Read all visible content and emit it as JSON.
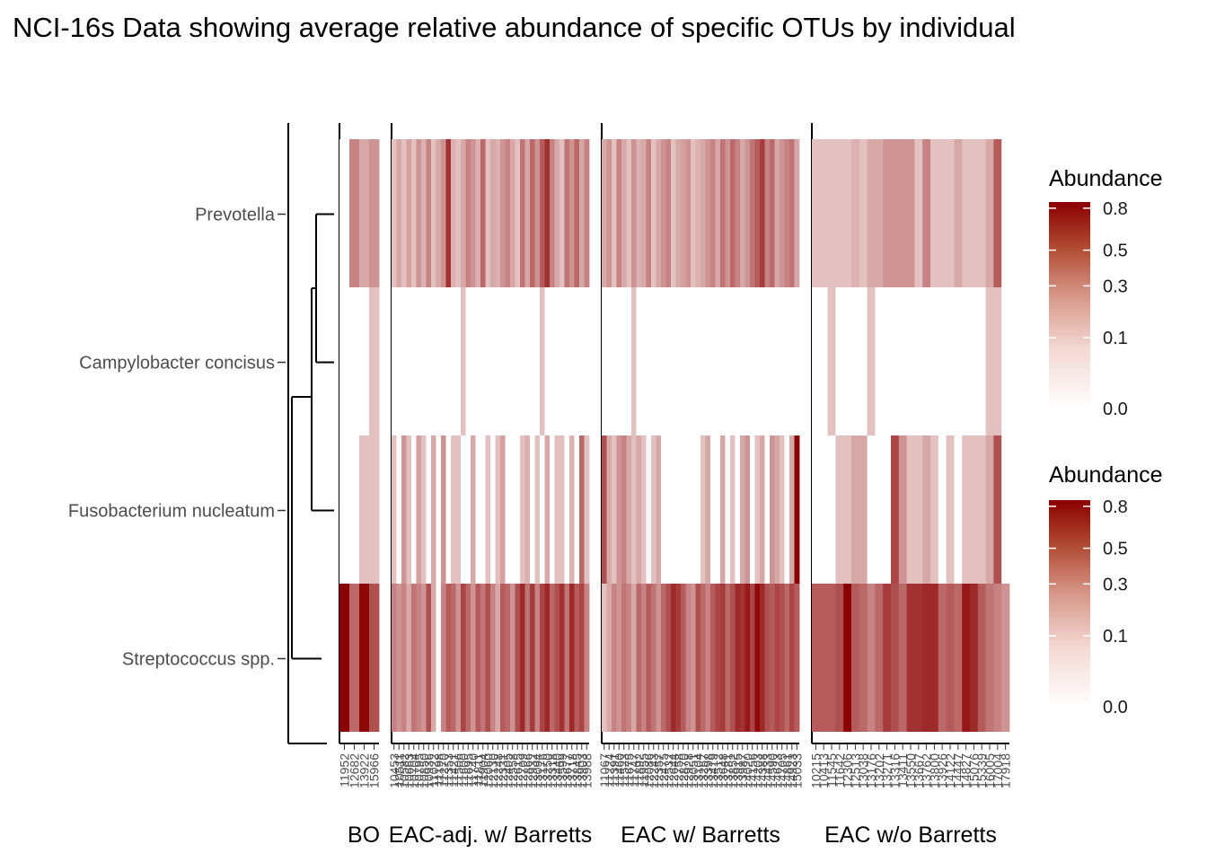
{
  "chart_data": {
    "type": "heatmap",
    "title": "NCI-16s Data showing average relative abundance of specific OTUs by individual",
    "rows": [
      "Prevotella",
      "Campylobacter concisus",
      "Fusobacterium nucleatum",
      "Streptococcus spp."
    ],
    "color_low": "#ffffff",
    "color_high": "#8b0000",
    "groups": [
      {
        "name": "BO",
        "samples": [
          "11952",
          "12682",
          "13922",
          "15966"
        ],
        "values": {
          "Prevotella": [
            0.0,
            0.2,
            0.1,
            0.15
          ],
          "Campylobacter concisus": [
            0.0,
            0.0,
            0.0,
            0.05
          ],
          "Fusobacterium nucleatum": [
            0.0,
            0.0,
            0.05,
            0.05
          ],
          "Streptococcus spp.": [
            0.85,
            0.3,
            0.8,
            0.4
          ]
        }
      },
      {
        "name": "EAC-adj. w/ Barretts",
        "samples": [
          "10453",
          "10511",
          "10582",
          "10663",
          "10704",
          "10795",
          "10850",
          "10936",
          "11022",
          "11198",
          "11270",
          "11353",
          "11421",
          "11506",
          "11600",
          "11695",
          "11740",
          "11811",
          "11904",
          "12060",
          "12130",
          "12248",
          "12331",
          "12405",
          "12558",
          "12615",
          "12709",
          "12866",
          "12932",
          "13094",
          "13176",
          "13250",
          "13318",
          "13440",
          "13599",
          "13677",
          "13718",
          "13845",
          "13903",
          "13988"
        ],
        "values": {
          "Prevotella": [
            0.05,
            0.1,
            0.05,
            0.12,
            0.05,
            0.15,
            0.08,
            0.2,
            0.05,
            0.1,
            0.15,
            0.55,
            0.08,
            0.05,
            0.1,
            0.2,
            0.15,
            0.08,
            0.3,
            0.05,
            0.1,
            0.08,
            0.15,
            0.2,
            0.1,
            0.05,
            0.25,
            0.1,
            0.3,
            0.15,
            0.35,
            0.55,
            0.2,
            0.1,
            0.05,
            0.25,
            0.15,
            0.3,
            0.1,
            0.2
          ],
          "Campylobacter concisus": [
            0.0,
            0.0,
            0.0,
            0.0,
            0.0,
            0.0,
            0.0,
            0.0,
            0.0,
            0.0,
            0.0,
            0.0,
            0.0,
            0.0,
            0.05,
            0.0,
            0.0,
            0.0,
            0.0,
            0.0,
            0.0,
            0.0,
            0.0,
            0.0,
            0.0,
            0.0,
            0.0,
            0.0,
            0.0,
            0.0,
            0.05,
            0.0,
            0.0,
            0.0,
            0.0,
            0.0,
            0.0,
            0.0,
            0.0,
            0.0
          ],
          "Fusobacterium nucleatum": [
            0.05,
            0.0,
            0.15,
            0.05,
            0.0,
            0.12,
            0.05,
            0.0,
            0.1,
            0.0,
            0.15,
            0.0,
            0.05,
            0.05,
            0.0,
            0.0,
            0.1,
            0.0,
            0.0,
            0.05,
            0.0,
            0.05,
            0.12,
            0.0,
            0.0,
            0.0,
            0.05,
            0.08,
            0.0,
            0.05,
            0.0,
            0.1,
            0.0,
            0.05,
            0.05,
            0.0,
            0.08,
            0.0,
            0.3,
            0.05
          ],
          "Streptococcus spp.": [
            0.2,
            0.15,
            0.2,
            0.1,
            0.25,
            0.2,
            0.15,
            0.4,
            0.1,
            0.0,
            0.2,
            0.35,
            0.3,
            0.15,
            0.45,
            0.3,
            0.15,
            0.35,
            0.25,
            0.4,
            0.2,
            0.1,
            0.35,
            0.3,
            0.15,
            0.4,
            0.6,
            0.25,
            0.5,
            0.2,
            0.45,
            0.6,
            0.3,
            0.4,
            0.55,
            0.25,
            0.6,
            0.35,
            0.45,
            0.2
          ]
        }
      },
      {
        "name": "EAC w/ Barretts",
        "samples": [
          "11067",
          "11224",
          "11391",
          "11460",
          "11523",
          "11675",
          "11747",
          "11892",
          "11955",
          "12086",
          "12243",
          "12357",
          "12475",
          "12532",
          "12644",
          "12758",
          "12870",
          "12928",
          "13051",
          "13104",
          "13267",
          "13398",
          "13419",
          "13512",
          "13648",
          "13781",
          "13852",
          "13915",
          "13987",
          "14020",
          "14156",
          "14203",
          "14388",
          "14433",
          "14590",
          "14623",
          "14705",
          "14861",
          "14923",
          "15033"
        ],
        "values": {
          "Prevotella": [
            0.1,
            0.15,
            0.05,
            0.2,
            0.1,
            0.05,
            0.15,
            0.08,
            0.1,
            0.2,
            0.05,
            0.1,
            0.15,
            0.2,
            0.05,
            0.1,
            0.12,
            0.15,
            0.05,
            0.08,
            0.1,
            0.15,
            0.2,
            0.1,
            0.25,
            0.15,
            0.3,
            0.2,
            0.1,
            0.15,
            0.25,
            0.35,
            0.5,
            0.2,
            0.3,
            0.1,
            0.15,
            0.2,
            0.25,
            0.1
          ],
          "Campylobacter concisus": [
            0.0,
            0.0,
            0.0,
            0.0,
            0.0,
            0.0,
            0.05,
            0.0,
            0.0,
            0.0,
            0.0,
            0.0,
            0.0,
            0.0,
            0.0,
            0.0,
            0.0,
            0.0,
            0.0,
            0.0,
            0.0,
            0.0,
            0.0,
            0.0,
            0.0,
            0.0,
            0.0,
            0.0,
            0.0,
            0.0,
            0.0,
            0.0,
            0.0,
            0.0,
            0.0,
            0.0,
            0.0,
            0.0,
            0.0,
            0.0
          ],
          "Fusobacterium nucleatum": [
            0.4,
            0.1,
            0.05,
            0.15,
            0.2,
            0.1,
            0.05,
            0.1,
            0.05,
            0.0,
            0.05,
            0.1,
            0.0,
            0.0,
            0.0,
            0.0,
            0.0,
            0.0,
            0.0,
            0.0,
            0.05,
            0.1,
            0.0,
            0.0,
            0.1,
            0.0,
            0.05,
            0.0,
            0.1,
            0.15,
            0.0,
            0.05,
            0.1,
            0.0,
            0.15,
            0.1,
            0.05,
            0.0,
            0.1,
            0.85
          ],
          "Streptococcus spp.": [
            0.05,
            0.1,
            0.2,
            0.15,
            0.25,
            0.2,
            0.1,
            0.3,
            0.2,
            0.35,
            0.25,
            0.15,
            0.3,
            0.4,
            0.6,
            0.5,
            0.35,
            0.2,
            0.15,
            0.4,
            0.3,
            0.2,
            0.35,
            0.45,
            0.5,
            0.3,
            0.4,
            0.6,
            0.55,
            0.7,
            0.45,
            0.8,
            0.6,
            0.4,
            0.35,
            0.45,
            0.4,
            0.3,
            0.45,
            0.35
          ]
        }
      },
      {
        "name": "EAC w/o Barretts",
        "samples": [
          "10215",
          "10413",
          "11545",
          "11642",
          "12306",
          "12513",
          "13038",
          "13176",
          "13202",
          "13271",
          "13316",
          "13411",
          "13550",
          "13667",
          "13762",
          "13800",
          "13926",
          "14122",
          "14447",
          "14827",
          "15076",
          "15339",
          "16005",
          "17004",
          "17918"
        ],
        "values": {
          "Prevotella": [
            0.05,
            0.05,
            0.05,
            0.05,
            0.05,
            0.08,
            0.05,
            0.1,
            0.1,
            0.15,
            0.15,
            0.15,
            0.15,
            0.05,
            0.2,
            0.05,
            0.05,
            0.05,
            0.1,
            0.05,
            0.05,
            0.05,
            0.1,
            0.35,
            0.0
          ],
          "Campylobacter concisus": [
            0.0,
            0.0,
            0.05,
            0.0,
            0.0,
            0.0,
            0.0,
            0.05,
            0.0,
            0.0,
            0.0,
            0.0,
            0.0,
            0.0,
            0.0,
            0.0,
            0.0,
            0.0,
            0.0,
            0.0,
            0.0,
            0.0,
            0.05,
            0.05,
            0.0
          ],
          "Fusobacterium nucleatum": [
            0.0,
            0.0,
            0.0,
            0.05,
            0.05,
            0.1,
            0.1,
            0.0,
            0.0,
            0.0,
            0.45,
            0.15,
            0.05,
            0.05,
            0.1,
            0.05,
            0.0,
            0.05,
            0.0,
            0.05,
            0.05,
            0.05,
            0.1,
            0.4,
            0.0
          ],
          "Streptococcus spp.": [
            0.35,
            0.35,
            0.35,
            0.4,
            0.85,
            0.35,
            0.3,
            0.2,
            0.3,
            0.5,
            0.4,
            0.3,
            0.55,
            0.55,
            0.6,
            0.6,
            0.3,
            0.35,
            0.3,
            0.7,
            0.6,
            0.35,
            0.25,
            0.2,
            0.15
          ]
        }
      }
    ],
    "dendrogram": {
      "merges": [
        [
          "Prevotella",
          "Campylobacter concisus"
        ],
        [
          "Prevotella+Campylobacter concisus",
          "Fusobacterium nucleatum"
        ],
        [
          "Prevotella+Campylobacter concisus+Fusobacterium nucleatum",
          "Streptococcus spp."
        ]
      ]
    },
    "legends": [
      {
        "title": "Abundance",
        "ticks": [
          0.8,
          0.5,
          0.3,
          0.1,
          0.0
        ],
        "tick_labels": [
          "0.8",
          "0.5",
          "0.3",
          "0.1",
          "0.0"
        ],
        "scale": "sqrt"
      },
      {
        "title": "Abundance",
        "ticks": [
          0.8,
          0.5,
          0.3,
          0.1,
          0.0
        ],
        "tick_labels": [
          "0.8",
          "0.5",
          "0.3",
          "0.1",
          "0.0"
        ],
        "scale": "sqrt"
      }
    ]
  }
}
